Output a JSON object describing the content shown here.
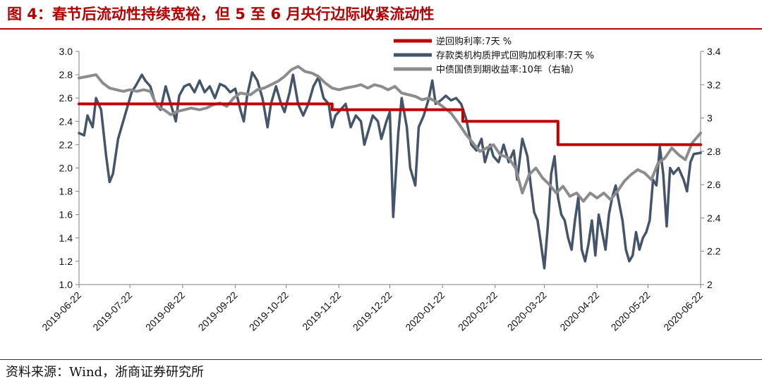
{
  "title": "图 4：春节后流动性持续宽裕，但 5 至 6 月央行边际收紧流动性",
  "source": "资料来源：Wind，浙商证券研究所",
  "chart_data": {
    "type": "line",
    "x_ticks": [
      "2019-06-22",
      "2019-07-22",
      "2019-08-22",
      "2019-09-22",
      "2019-10-22",
      "2019-11-22",
      "2019-12-22",
      "2020-01-22",
      "2020-02-22",
      "2020-03-22",
      "2020-04-22",
      "2020-05-22",
      "2020-06-22"
    ],
    "x_range": [
      "2019-06-22",
      "2020-06-22"
    ],
    "y_left": {
      "range": [
        1.0,
        3.0
      ],
      "ticks": [
        "1.0",
        "1.2",
        "1.4",
        "1.6",
        "1.8",
        "2.0",
        "2.2",
        "2.4",
        "2.6",
        "2.8",
        "3.0"
      ]
    },
    "y_right": {
      "range": [
        2.0,
        3.4
      ],
      "ticks": [
        "2",
        "2.2",
        "2.4",
        "2.6",
        "2.8",
        "3",
        "3.2",
        "3.4"
      ]
    },
    "legend_position": "top-right",
    "grid": false,
    "series": [
      {
        "name": "逆回购利率:7天 %",
        "axis": "left",
        "color": "#c00000",
        "step": true,
        "points": [
          [
            "2019-06-22",
            2.55
          ],
          [
            "2019-11-18",
            2.55
          ],
          [
            "2019-11-18",
            2.5
          ],
          [
            "2020-02-03",
            2.5
          ],
          [
            "2020-02-03",
            2.4
          ],
          [
            "2020-03-30",
            2.4
          ],
          [
            "2020-03-30",
            2.2
          ],
          [
            "2020-06-22",
            2.2
          ]
        ]
      },
      {
        "name": "存款类机构质押式回购加权利率:7天 %",
        "axis": "left",
        "color": "#44546a",
        "points": [
          [
            "2019-06-22",
            2.3
          ],
          [
            "2019-06-25",
            2.28
          ],
          [
            "2019-06-27",
            2.45
          ],
          [
            "2019-06-30",
            2.35
          ],
          [
            "2019-07-02",
            2.6
          ],
          [
            "2019-07-05",
            2.5
          ],
          [
            "2019-07-08",
            2.1
          ],
          [
            "2019-07-10",
            1.88
          ],
          [
            "2019-07-12",
            1.95
          ],
          [
            "2019-07-15",
            2.25
          ],
          [
            "2019-07-18",
            2.4
          ],
          [
            "2019-07-20",
            2.5
          ],
          [
            "2019-07-23",
            2.65
          ],
          [
            "2019-07-26",
            2.72
          ],
          [
            "2019-07-29",
            2.8
          ],
          [
            "2019-07-31",
            2.75
          ],
          [
            "2019-08-03",
            2.7
          ],
          [
            "2019-08-06",
            2.55
          ],
          [
            "2019-08-09",
            2.5
          ],
          [
            "2019-08-12",
            2.7
          ],
          [
            "2019-08-15",
            2.55
          ],
          [
            "2019-08-18",
            2.4
          ],
          [
            "2019-08-20",
            2.62
          ],
          [
            "2019-08-23",
            2.7
          ],
          [
            "2019-08-26",
            2.72
          ],
          [
            "2019-08-29",
            2.65
          ],
          [
            "2019-09-01",
            2.75
          ],
          [
            "2019-09-04",
            2.65
          ],
          [
            "2019-09-07",
            2.7
          ],
          [
            "2019-09-10",
            2.6
          ],
          [
            "2019-09-13",
            2.72
          ],
          [
            "2019-09-16",
            2.7
          ],
          [
            "2019-09-19",
            2.65
          ],
          [
            "2019-09-22",
            2.68
          ],
          [
            "2019-09-25",
            2.5
          ],
          [
            "2019-09-27",
            2.4
          ],
          [
            "2019-09-29",
            2.62
          ],
          [
            "2019-10-02",
            2.82
          ],
          [
            "2019-10-05",
            2.75
          ],
          [
            "2019-10-08",
            2.6
          ],
          [
            "2019-10-11",
            2.35
          ],
          [
            "2019-10-13",
            2.55
          ],
          [
            "2019-10-16",
            2.7
          ],
          [
            "2019-10-19",
            2.55
          ],
          [
            "2019-10-21",
            2.48
          ],
          [
            "2019-10-24",
            2.65
          ],
          [
            "2019-10-26",
            2.8
          ],
          [
            "2019-10-29",
            2.55
          ],
          [
            "2019-11-01",
            2.45
          ],
          [
            "2019-11-04",
            2.55
          ],
          [
            "2019-11-07",
            2.7
          ],
          [
            "2019-11-10",
            2.78
          ],
          [
            "2019-11-13",
            2.6
          ],
          [
            "2019-11-16",
            2.55
          ],
          [
            "2019-11-18",
            2.35
          ],
          [
            "2019-11-20",
            2.45
          ],
          [
            "2019-11-23",
            2.5
          ],
          [
            "2019-11-26",
            2.55
          ],
          [
            "2019-11-29",
            2.35
          ],
          [
            "2019-12-02",
            2.45
          ],
          [
            "2019-12-05",
            2.4
          ],
          [
            "2019-12-07",
            2.2
          ],
          [
            "2019-12-10",
            2.35
          ],
          [
            "2019-12-12",
            2.45
          ],
          [
            "2019-12-15",
            2.4
          ],
          [
            "2019-12-17",
            2.25
          ],
          [
            "2019-12-20",
            2.4
          ],
          [
            "2019-12-22",
            2.48
          ],
          [
            "2019-12-24",
            1.58
          ],
          [
            "2019-12-27",
            2.3
          ],
          [
            "2019-12-29",
            2.6
          ],
          [
            "2020-01-01",
            2.35
          ],
          [
            "2020-01-03",
            2.0
          ],
          [
            "2020-01-06",
            1.85
          ],
          [
            "2020-01-08",
            2.35
          ],
          [
            "2020-01-11",
            2.45
          ],
          [
            "2020-01-14",
            2.6
          ],
          [
            "2020-01-16",
            2.75
          ],
          [
            "2020-01-18",
            2.55
          ],
          [
            "2020-01-21",
            2.58
          ],
          [
            "2020-01-24",
            2.62
          ],
          [
            "2020-01-27",
            2.58
          ],
          [
            "2020-01-30",
            2.6
          ],
          [
            "2020-02-02",
            2.55
          ],
          [
            "2020-02-05",
            2.42
          ],
          [
            "2020-02-08",
            2.2
          ],
          [
            "2020-02-11",
            2.15
          ],
          [
            "2020-02-14",
            2.25
          ],
          [
            "2020-02-16",
            2.05
          ],
          [
            "2020-02-19",
            2.2
          ],
          [
            "2020-02-21",
            2.1
          ],
          [
            "2020-02-24",
            2.05
          ],
          [
            "2020-02-27",
            2.2
          ],
          [
            "2020-03-01",
            2.05
          ],
          [
            "2020-03-04",
            2.15
          ],
          [
            "2020-03-06",
            1.9
          ],
          [
            "2020-03-09",
            2.25
          ],
          [
            "2020-03-12",
            2.1
          ],
          [
            "2020-03-14",
            1.85
          ],
          [
            "2020-03-16",
            1.62
          ],
          [
            "2020-03-18",
            1.55
          ],
          [
            "2020-03-20",
            1.35
          ],
          [
            "2020-03-22",
            1.14
          ],
          [
            "2020-03-24",
            1.5
          ],
          [
            "2020-03-26",
            1.95
          ],
          [
            "2020-03-28",
            2.1
          ],
          [
            "2020-03-30",
            1.75
          ],
          [
            "2020-04-01",
            1.6
          ],
          [
            "2020-04-03",
            1.55
          ],
          [
            "2020-04-05",
            1.4
          ],
          [
            "2020-04-07",
            1.3
          ],
          [
            "2020-04-09",
            1.55
          ],
          [
            "2020-04-11",
            1.75
          ],
          [
            "2020-04-13",
            1.3
          ],
          [
            "2020-04-15",
            1.2
          ],
          [
            "2020-04-17",
            1.35
          ],
          [
            "2020-04-19",
            1.55
          ],
          [
            "2020-04-21",
            1.25
          ],
          [
            "2020-04-23",
            1.6
          ],
          [
            "2020-04-25",
            1.45
          ],
          [
            "2020-04-27",
            1.3
          ],
          [
            "2020-04-29",
            1.6
          ],
          [
            "2020-05-01",
            1.75
          ],
          [
            "2020-05-03",
            1.85
          ],
          [
            "2020-05-05",
            1.7
          ],
          [
            "2020-05-07",
            1.55
          ],
          [
            "2020-05-09",
            1.3
          ],
          [
            "2020-05-11",
            1.2
          ],
          [
            "2020-05-13",
            1.25
          ],
          [
            "2020-05-15",
            1.45
          ],
          [
            "2020-05-17",
            1.3
          ],
          [
            "2020-05-19",
            1.4
          ],
          [
            "2020-05-21",
            1.45
          ],
          [
            "2020-05-23",
            1.55
          ],
          [
            "2020-05-25",
            1.9
          ],
          [
            "2020-05-27",
            1.85
          ],
          [
            "2020-05-29",
            2.18
          ],
          [
            "2020-05-31",
            1.95
          ],
          [
            "2020-06-02",
            1.5
          ],
          [
            "2020-06-04",
            2.0
          ],
          [
            "2020-06-06",
            1.95
          ],
          [
            "2020-06-09",
            2.0
          ],
          [
            "2020-06-12",
            1.9
          ],
          [
            "2020-06-14",
            1.8
          ],
          [
            "2020-06-16",
            2.05
          ],
          [
            "2020-06-18",
            2.12
          ],
          [
            "2020-06-22",
            2.13
          ]
        ]
      },
      {
        "name": "中债国债到期收益率:10年（右轴）",
        "axis": "right",
        "color": "#8c8c8c",
        "points": [
          [
            "2019-06-22",
            3.24
          ],
          [
            "2019-06-27",
            3.25
          ],
          [
            "2019-07-02",
            3.26
          ],
          [
            "2019-07-06",
            3.21
          ],
          [
            "2019-07-10",
            3.18
          ],
          [
            "2019-07-14",
            3.17
          ],
          [
            "2019-07-18",
            3.16
          ],
          [
            "2019-07-22",
            3.17
          ],
          [
            "2019-07-26",
            3.16
          ],
          [
            "2019-07-30",
            3.17
          ],
          [
            "2019-08-03",
            3.16
          ],
          [
            "2019-08-07",
            3.07
          ],
          [
            "2019-08-11",
            3.05
          ],
          [
            "2019-08-15",
            3.02
          ],
          [
            "2019-08-19",
            3.04
          ],
          [
            "2019-08-23",
            3.05
          ],
          [
            "2019-08-27",
            3.06
          ],
          [
            "2019-09-01",
            3.05
          ],
          [
            "2019-09-05",
            3.06
          ],
          [
            "2019-09-09",
            3.08
          ],
          [
            "2019-09-13",
            3.09
          ],
          [
            "2019-09-17",
            3.07
          ],
          [
            "2019-09-21",
            3.12
          ],
          [
            "2019-09-25",
            3.15
          ],
          [
            "2019-10-01",
            3.14
          ],
          [
            "2019-10-05",
            3.17
          ],
          [
            "2019-10-09",
            3.18
          ],
          [
            "2019-10-13",
            3.2
          ],
          [
            "2019-10-17",
            3.22
          ],
          [
            "2019-10-21",
            3.25
          ],
          [
            "2019-10-25",
            3.29
          ],
          [
            "2019-10-29",
            3.31
          ],
          [
            "2019-11-02",
            3.28
          ],
          [
            "2019-11-06",
            3.27
          ],
          [
            "2019-11-10",
            3.25
          ],
          [
            "2019-11-14",
            3.21
          ],
          [
            "2019-11-18",
            3.18
          ],
          [
            "2019-11-22",
            3.17
          ],
          [
            "2019-11-26",
            3.18
          ],
          [
            "2019-12-01",
            3.19
          ],
          [
            "2019-12-05",
            3.2
          ],
          [
            "2019-12-09",
            3.18
          ],
          [
            "2019-12-13",
            3.2
          ],
          [
            "2019-12-17",
            3.19
          ],
          [
            "2019-12-21",
            3.17
          ],
          [
            "2019-12-25",
            3.19
          ],
          [
            "2019-12-29",
            3.15
          ],
          [
            "2020-01-02",
            3.14
          ],
          [
            "2020-01-06",
            3.13
          ],
          [
            "2020-01-10",
            3.11
          ],
          [
            "2020-01-14",
            3.12
          ],
          [
            "2020-01-18",
            3.1
          ],
          [
            "2020-01-22",
            3.07
          ],
          [
            "2020-01-27",
            3.03
          ],
          [
            "2020-02-01",
            2.96
          ],
          [
            "2020-02-05",
            2.9
          ],
          [
            "2020-02-09",
            2.85
          ],
          [
            "2020-02-13",
            2.8
          ],
          [
            "2020-02-17",
            2.82
          ],
          [
            "2020-02-21",
            2.84
          ],
          [
            "2020-02-25",
            2.78
          ],
          [
            "2020-03-01",
            2.76
          ],
          [
            "2020-03-05",
            2.7
          ],
          [
            "2020-03-09",
            2.55
          ],
          [
            "2020-03-13",
            2.66
          ],
          [
            "2020-03-17",
            2.7
          ],
          [
            "2020-03-21",
            2.64
          ],
          [
            "2020-03-25",
            2.6
          ],
          [
            "2020-03-29",
            2.55
          ],
          [
            "2020-04-02",
            2.59
          ],
          [
            "2020-04-06",
            2.53
          ],
          [
            "2020-04-10",
            2.55
          ],
          [
            "2020-04-14",
            2.5
          ],
          [
            "2020-04-18",
            2.55
          ],
          [
            "2020-04-22",
            2.52
          ],
          [
            "2020-04-26",
            2.55
          ],
          [
            "2020-04-30",
            2.51
          ],
          [
            "2020-05-04",
            2.56
          ],
          [
            "2020-05-08",
            2.62
          ],
          [
            "2020-05-12",
            2.66
          ],
          [
            "2020-05-16",
            2.69
          ],
          [
            "2020-05-20",
            2.67
          ],
          [
            "2020-05-24",
            2.63
          ],
          [
            "2020-05-28",
            2.73
          ],
          [
            "2020-06-01",
            2.76
          ],
          [
            "2020-06-05",
            2.82
          ],
          [
            "2020-06-09",
            2.78
          ],
          [
            "2020-06-13",
            2.75
          ],
          [
            "2020-06-17",
            2.85
          ],
          [
            "2020-06-22",
            2.91
          ]
        ]
      }
    ]
  }
}
